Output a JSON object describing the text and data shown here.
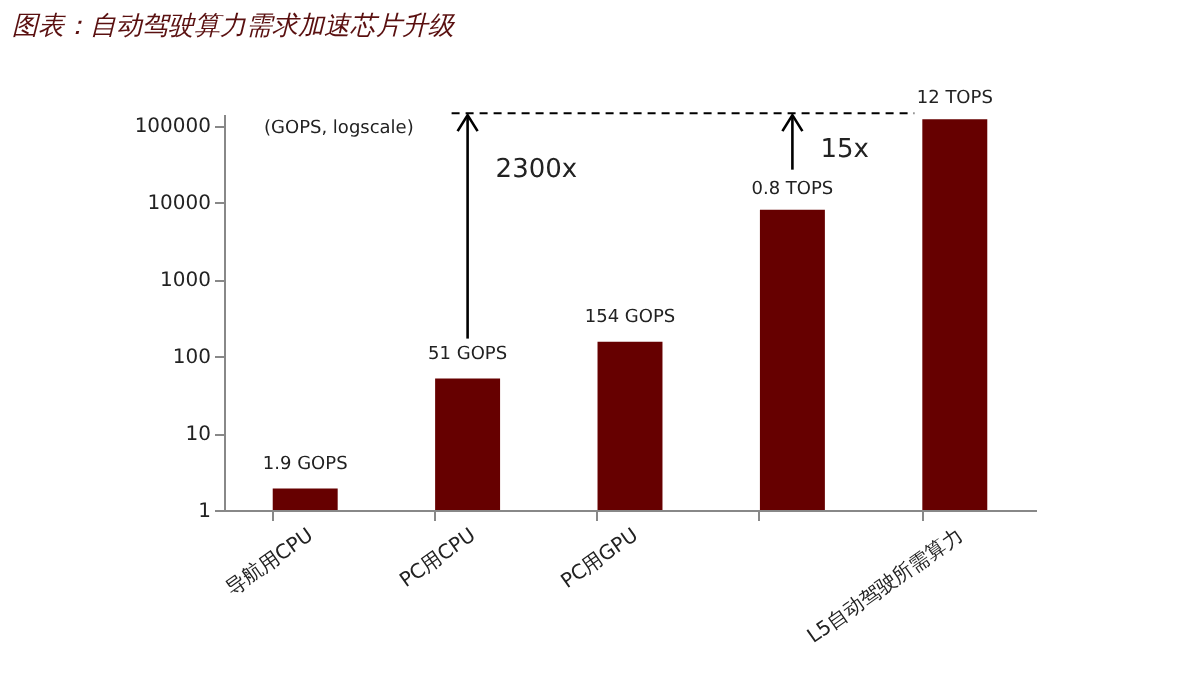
{
  "chart_data": {
    "type": "bar",
    "title": "图表：自动驾驶算力需求加速芯片升级",
    "categories": [
      "导航用CPU",
      "PC用CPU",
      "PC用GPU",
      null,
      "L5自动驾驶所需算力"
    ],
    "values": [
      1.9,
      51,
      154,
      8000,
      120000
    ],
    "value_labels": [
      "1.9 GOPS",
      "51 GOPS",
      "154 GOPS",
      null,
      null
    ],
    "color": "#660000",
    "log": "y",
    "ylim": [
      1,
      140000
    ],
    "yticks": [
      1,
      10,
      100,
      1000,
      10000,
      100000
    ],
    "grid": false,
    "annotations": [
      "(GOPS, logscale)",
      "2300x",
      "15x",
      "0.8 TOPS",
      "12 TOPS"
    ]
  }
}
